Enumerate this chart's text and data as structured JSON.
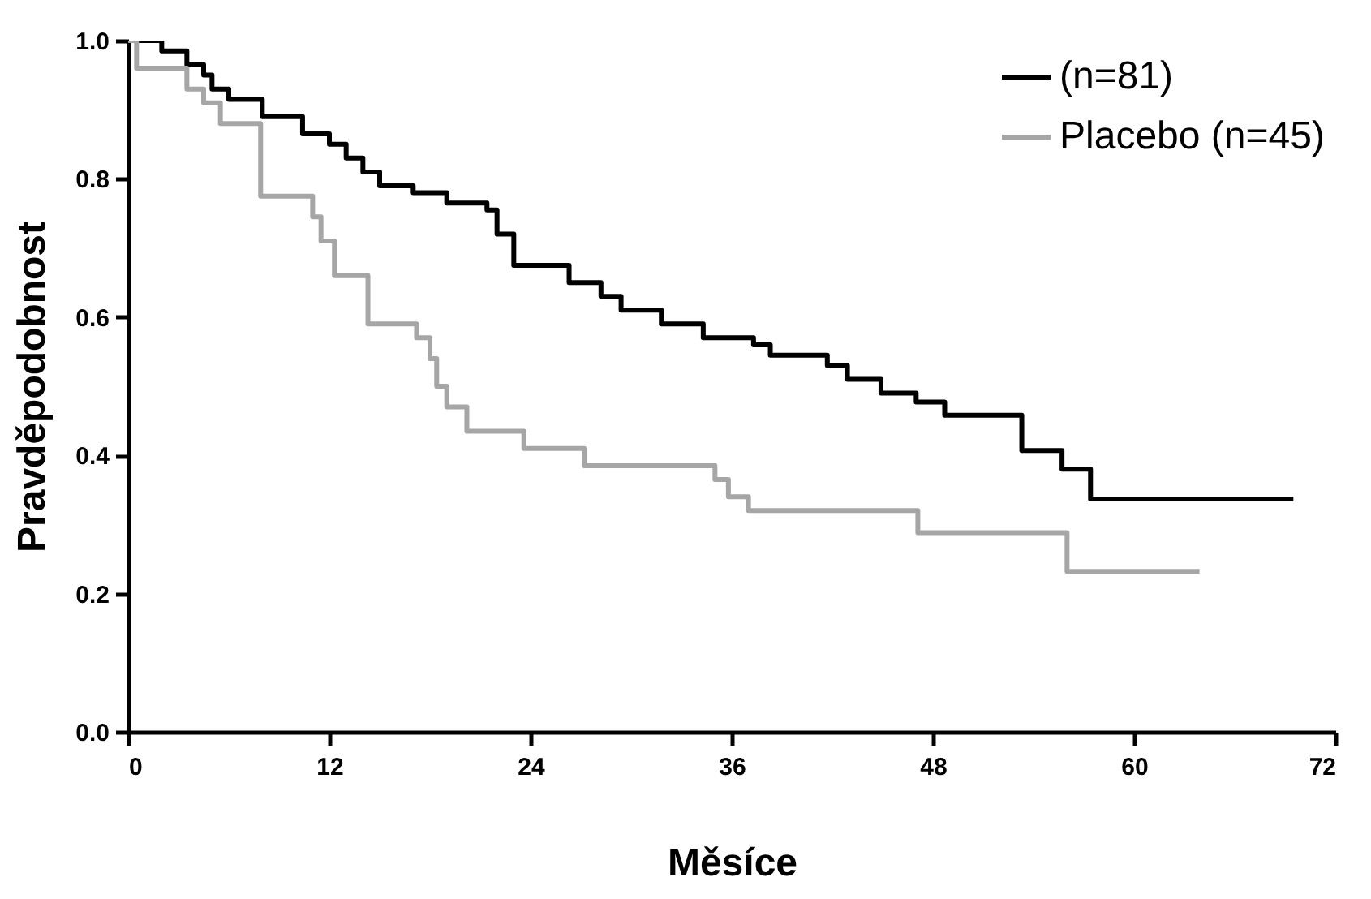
{
  "chart_data": {
    "type": "step",
    "xlabel": "Měsíce",
    "ylabel": "Pravděpodobnost",
    "xlim": [
      0,
      72
    ],
    "xticks": [
      0,
      12,
      24,
      36,
      48,
      60,
      72
    ],
    "ylim": [
      0,
      1
    ],
    "yticks": [
      {
        "value": 0,
        "label": "0.0"
      },
      {
        "value": 0.2,
        "label": "0.2"
      },
      {
        "value": 0.4,
        "label": "0.4"
      },
      {
        "value": 0.6,
        "label": "0.6"
      },
      {
        "value": 0.8,
        "label": "0.8"
      },
      {
        "value": 1,
        "label": "1.0"
      }
    ],
    "grid": false,
    "legend": "top right",
    "marker": "none",
    "line_style": "solid",
    "series": [
      {
        "name": "(n=81)",
        "color": "#000000",
        "x": [
          0,
          2,
          3.5,
          4.5,
          5,
          6,
          8,
          10.4,
          12,
          13,
          14,
          15,
          17,
          19,
          21.4,
          22,
          23,
          26.3,
          28.2,
          29.4,
          31.8,
          34.3,
          37.3,
          38.3,
          41.7,
          42.9,
          44.9,
          47,
          48.7,
          53.3,
          55.7,
          57.4,
          69.5
        ],
        "values": [
          1.0,
          0.985,
          0.965,
          0.95,
          0.93,
          0.915,
          0.89,
          0.865,
          0.85,
          0.83,
          0.81,
          0.79,
          0.78,
          0.765,
          0.755,
          0.72,
          0.675,
          0.65,
          0.63,
          0.61,
          0.59,
          0.57,
          0.56,
          0.545,
          0.53,
          0.51,
          0.49,
          0.477,
          0.458,
          0.407,
          0.38,
          0.337,
          0.337
        ]
      },
      {
        "name": "Placebo (n=45)",
        "color": "#a6a6a6",
        "x": [
          0,
          0.5,
          3.5,
          4.5,
          5.5,
          7.9,
          11,
          11.5,
          12.3,
          14.3,
          17.2,
          18,
          18.4,
          19,
          20.2,
          23.6,
          27.2,
          35,
          35.8,
          37,
          47.1,
          56,
          63.9
        ],
        "values": [
          1.0,
          0.96,
          0.93,
          0.91,
          0.88,
          0.775,
          0.745,
          0.71,
          0.66,
          0.59,
          0.57,
          0.54,
          0.5,
          0.47,
          0.435,
          0.41,
          0.385,
          0.365,
          0.34,
          0.32,
          0.288,
          0.232,
          0.232
        ]
      }
    ]
  }
}
